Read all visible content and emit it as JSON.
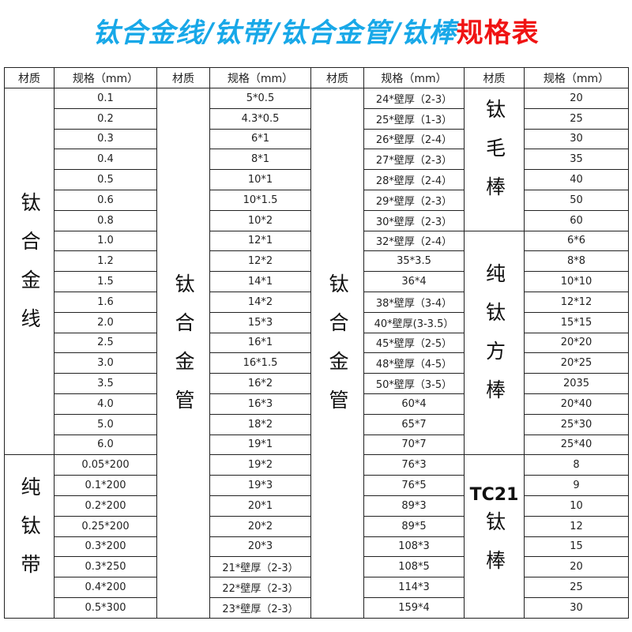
{
  "title": {
    "blue_part": "钛合金线/钛带/钛合金管/钛棒",
    "red_part": "规格表",
    "blue_color": "#18a8e8",
    "red_color": "#f01414"
  },
  "headers": [
    "材质",
    "规格（mm）",
    "材质",
    "规格（mm）",
    "材质",
    "规格（mm）",
    "材质",
    "规格（mm）"
  ],
  "columns": [
    {
      "groups": [
        {
          "material": "钛合金线",
          "specs": [
            "0.1",
            "0.2",
            "0.3",
            "0.4",
            "0.5",
            "0.6",
            "0.8",
            "1.0",
            "1.2",
            "1.5",
            "1.6",
            "2.0",
            "2.5",
            "3.0",
            "3.5",
            "4.0",
            "5.0",
            "6.0"
          ]
        },
        {
          "material": "纯钛带",
          "specs": [
            "0.05*200",
            "0.1*200",
            "0.2*200",
            "0.25*200",
            "0.3*200",
            "0.3*250",
            "0.4*200",
            "0.5*300"
          ]
        }
      ]
    },
    {
      "groups": [
        {
          "material": "钛合金管",
          "specs": [
            "5*0.5",
            "4.3*0.5",
            "6*1",
            "8*1",
            "10*1",
            "10*1.5",
            "10*2",
            "12*1",
            "12*2",
            "14*1",
            "14*2",
            "15*3",
            "16*1",
            "16*1.5",
            "16*2",
            "16*3",
            "18*2",
            "19*1",
            "19*2",
            "19*3",
            "20*1",
            "20*2",
            "20*3",
            "21*壁厚（2-3）",
            "22*壁厚（2-3）",
            "23*壁厚（2-3）"
          ]
        }
      ]
    },
    {
      "groups": [
        {
          "material": "钛合金管",
          "specs": [
            "24*壁厚（2-3）",
            "25*壁厚（1-3）",
            "26*壁厚（2-4）",
            "27*壁厚（2-3）",
            "28*壁厚（2-4）",
            "29*壁厚（2-3）",
            "30*壁厚（2-3）",
            "32*壁厚（2-4）",
            "35*3.5",
            "36*4",
            "38*壁厚（3-4）",
            "40*壁厚(3-3.5）",
            "45*壁厚（2-5）",
            "48*壁厚（4-5）",
            "50*壁厚（3-5）",
            "60*4",
            "65*7",
            "70*7",
            "76*3",
            "76*5",
            "89*3",
            "89*5",
            "108*3",
            "108*5",
            "114*3",
            "159*4"
          ]
        }
      ]
    },
    {
      "groups": [
        {
          "material": "钛毛棒",
          "specs": [
            "20",
            "25",
            "30",
            "35",
            "40",
            "50",
            "60"
          ]
        },
        {
          "material": "纯钛方棒",
          "specs": [
            "6*6",
            "8*8",
            "10*10",
            "12*12",
            "15*15",
            "20*20",
            "20*25",
            "2035",
            "20*40",
            "25*30",
            "25*40"
          ]
        },
        {
          "material_prefix": "TC21",
          "material": "钛棒",
          "specs": [
            "8",
            "9",
            "10",
            "12",
            "15",
            "20",
            "25",
            "30"
          ]
        }
      ]
    }
  ]
}
